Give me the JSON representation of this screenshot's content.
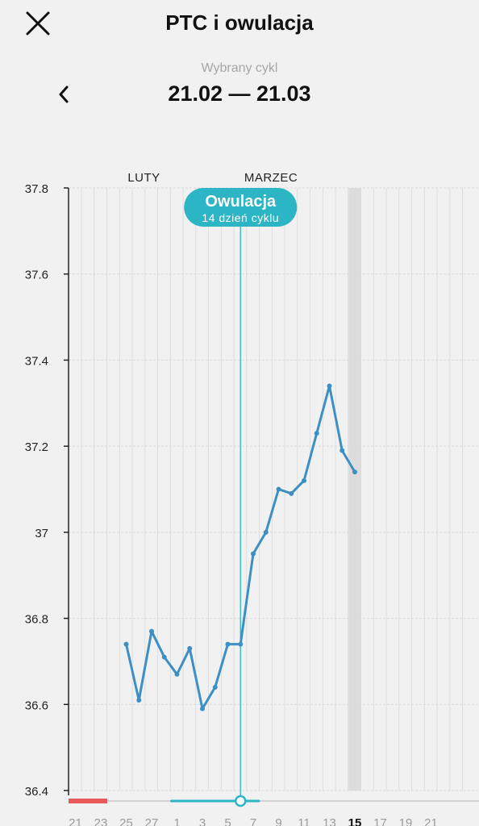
{
  "header": {
    "title": "PTC i owulacja",
    "close_icon": "close-icon",
    "cycle_caption": "Wybrany cykl",
    "cycle_range": "21.02 — 21.03",
    "prev_icon": "chevron-left-icon"
  },
  "colors": {
    "line": "#3d8fc4",
    "ovulation": "#2cb5c4",
    "period": "#e85a5a",
    "today_band": "#dcdcdc",
    "grid": "#d9d9d9"
  },
  "chart_data": {
    "type": "line",
    "title": "",
    "xlabel": "",
    "ylabel": "",
    "ylim": [
      36.4,
      37.8
    ],
    "y_ticks": [
      "36.4",
      "36.6",
      "36.8",
      "37",
      "37.2",
      "37.4",
      "37.6",
      "37.8"
    ],
    "month_labels": [
      {
        "label": "LUTY",
        "day": "25"
      },
      {
        "label": "MARZEC",
        "day": "7"
      }
    ],
    "x_tick_labels": [
      "21",
      "23",
      "25",
      "27",
      "1",
      "3",
      "5",
      "7",
      "9",
      "11",
      "13",
      "15",
      "17",
      "19",
      "21"
    ],
    "today_label": "15",
    "days": [
      "21",
      "22",
      "23",
      "24",
      "25",
      "26",
      "27",
      "28",
      "1",
      "2",
      "3",
      "4",
      "5",
      "6",
      "7",
      "8",
      "9",
      "10",
      "11",
      "12",
      "13",
      "14",
      "15",
      "16",
      "17",
      "18",
      "19",
      "20",
      "21",
      "22",
      "23"
    ],
    "series": [
      {
        "x": [
          "25",
          "26",
          "27",
          "28",
          "1",
          "2",
          "3",
          "4",
          "5",
          "6",
          "7",
          "8",
          "9",
          "10",
          "11",
          "12",
          "13",
          "14",
          "15"
        ],
        "values": [
          36.74,
          36.61,
          36.77,
          36.71,
          36.67,
          36.73,
          36.59,
          36.64,
          36.74,
          36.74,
          36.95,
          37.0,
          37.1,
          37.09,
          37.12,
          37.23,
          37.34,
          37.19,
          37.14
        ]
      }
    ],
    "ovulation": {
      "day": "6",
      "label": "Owulacja",
      "sublabel": "14 dzień cyklu"
    },
    "period_days": [
      "21",
      "23"
    ],
    "fertile_days": [
      "1",
      "7"
    ],
    "grid": true
  }
}
